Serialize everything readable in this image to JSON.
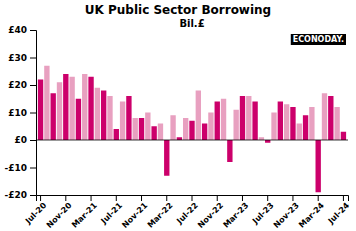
{
  "chart_data": {
    "type": "bar",
    "title": "UK Public Sector Borrowing",
    "subtitle": "Bil.£",
    "annotations": [
      "ECONODAY."
    ],
    "categories": [
      "Jul-20",
      null,
      null,
      null,
      "Nov-20",
      null,
      null,
      null,
      "Mar-21",
      null,
      null,
      null,
      "Jul-21",
      null,
      null,
      null,
      "Nov-21",
      null,
      null,
      null,
      "Mar-22",
      null,
      null,
      null,
      "Jul-22",
      null,
      null,
      null,
      "Nov-22",
      null,
      null,
      null,
      "Mar-23",
      null,
      null,
      null,
      "Jul-23",
      null,
      null,
      null,
      "Nov-23",
      null,
      null,
      null,
      "Mar-24",
      null,
      null,
      null,
      "Jul-24"
    ],
    "values": [
      22,
      27,
      17,
      21,
      24,
      23,
      15,
      24,
      23,
      19,
      18,
      16,
      4,
      14,
      16,
      8,
      8,
      10,
      5,
      6,
      -13,
      9,
      1,
      8,
      7,
      18,
      6,
      10,
      14,
      15,
      -8,
      11,
      16,
      16,
      14,
      1,
      -1,
      10,
      14,
      13,
      12,
      6,
      9,
      12,
      -19,
      17,
      16,
      12,
      3
    ],
    "colors": [
      "#CC006B",
      "#E8A0C0",
      "#CC006B",
      "#E8A0C0",
      "#CC006B",
      "#E8A0C0",
      "#CC006B",
      "#E8A0C0",
      "#CC006B",
      "#E8A0C0",
      "#CC006B",
      "#E8A0C0",
      "#CC006B",
      "#E8A0C0",
      "#CC006B",
      "#E8A0C0",
      "#CC006B",
      "#E8A0C0",
      "#CC006B",
      "#E8A0C0",
      "#CC006B",
      "#E8A0C0",
      "#CC006B",
      "#E8A0C0",
      "#CC006B",
      "#E8A0C0",
      "#CC006B",
      "#E8A0C0",
      "#CC006B",
      "#E8A0C0",
      "#CC006B",
      "#E8A0C0",
      "#CC006B",
      "#E8A0C0",
      "#CC006B",
      "#E8A0C0",
      "#CC006B",
      "#E8A0C0",
      "#CC006B",
      "#E8A0C0",
      "#CC006B",
      "#E8A0C0",
      "#CC006B",
      "#E8A0C0",
      "#CC006B",
      "#E8A0C0",
      "#CC006B",
      "#E8A0C0",
      "#CC006B"
    ],
    "ylim": [
      -20,
      40
    ],
    "yticks": [
      {
        "value": -20,
        "label": "-£20"
      },
      {
        "value": -10,
        "label": "-£10"
      },
      {
        "value": 0,
        "label": "£0"
      },
      {
        "value": 10,
        "label": "£10"
      },
      {
        "value": 20,
        "label": "£20"
      },
      {
        "value": 30,
        "label": "£30"
      },
      {
        "value": 40,
        "label": "£40"
      }
    ],
    "grid": false
  }
}
